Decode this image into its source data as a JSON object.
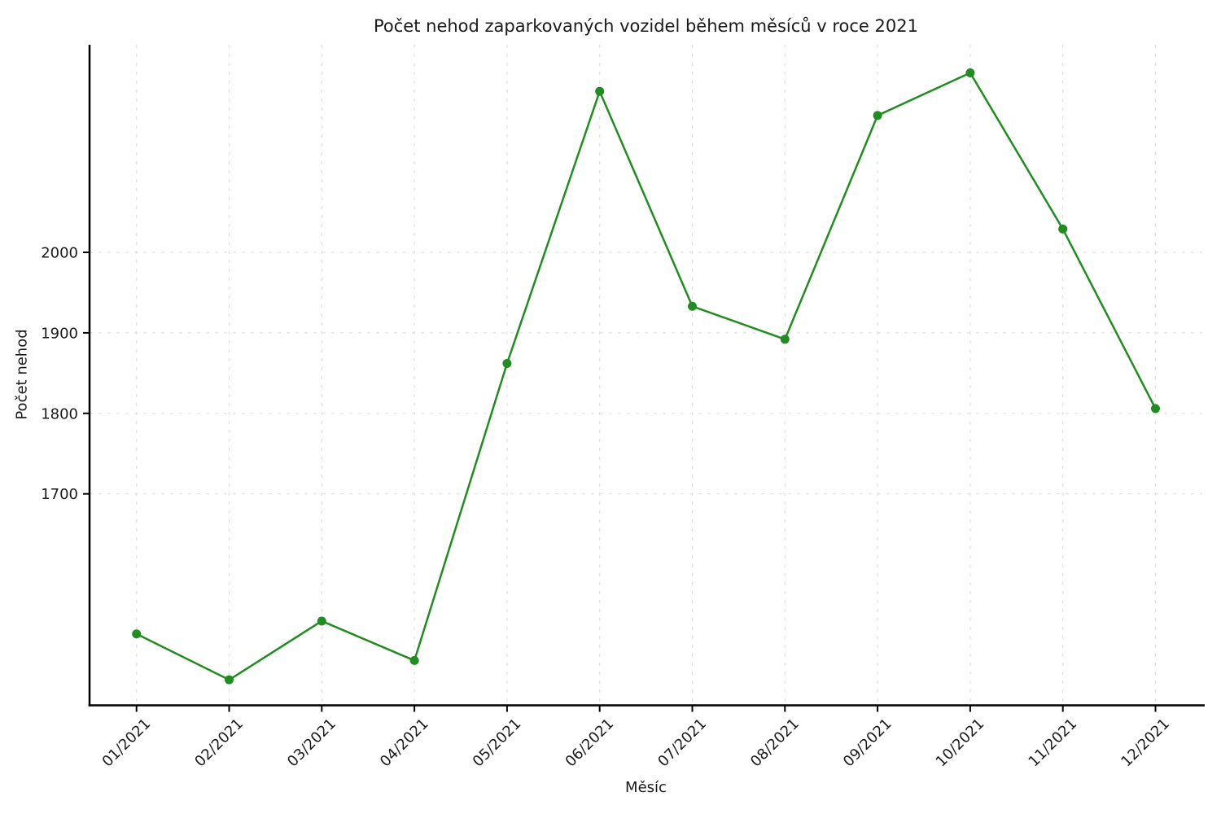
{
  "page": {
    "background": "#ffffff"
  },
  "chart_data": {
    "type": "line",
    "title": "Počet nehod zaparkovaných vozidel během měsíců v roce 2021",
    "xlabel": "Měsíc",
    "ylabel": "Počet nehod",
    "categories": [
      "01/2021",
      "02/2021",
      "03/2021",
      "04/2021",
      "05/2021",
      "06/2021",
      "07/2021",
      "08/2021",
      "09/2021",
      "10/2021",
      "11/2021",
      "12/2021"
    ],
    "series": [
      {
        "name": "Počet nehod",
        "values": [
          1526,
          1469,
          1542,
          1493,
          1862,
          2200,
          1933,
          1892,
          2170,
          2223,
          2029,
          1806
        ]
      }
    ],
    "yticks": [
      1700,
      1800,
      1900,
      2000
    ],
    "ylim": [
      1438,
      2258
    ],
    "grid": true,
    "grid_style": "dashed",
    "legend_position": "none",
    "line_color": "#228B22",
    "marker": "circle",
    "marker_radius": 5.5,
    "line_width": 2.5,
    "grid_color": "#e0e0e0",
    "axis_color": "#000000",
    "tick_label_color": "#1a1a1a"
  }
}
